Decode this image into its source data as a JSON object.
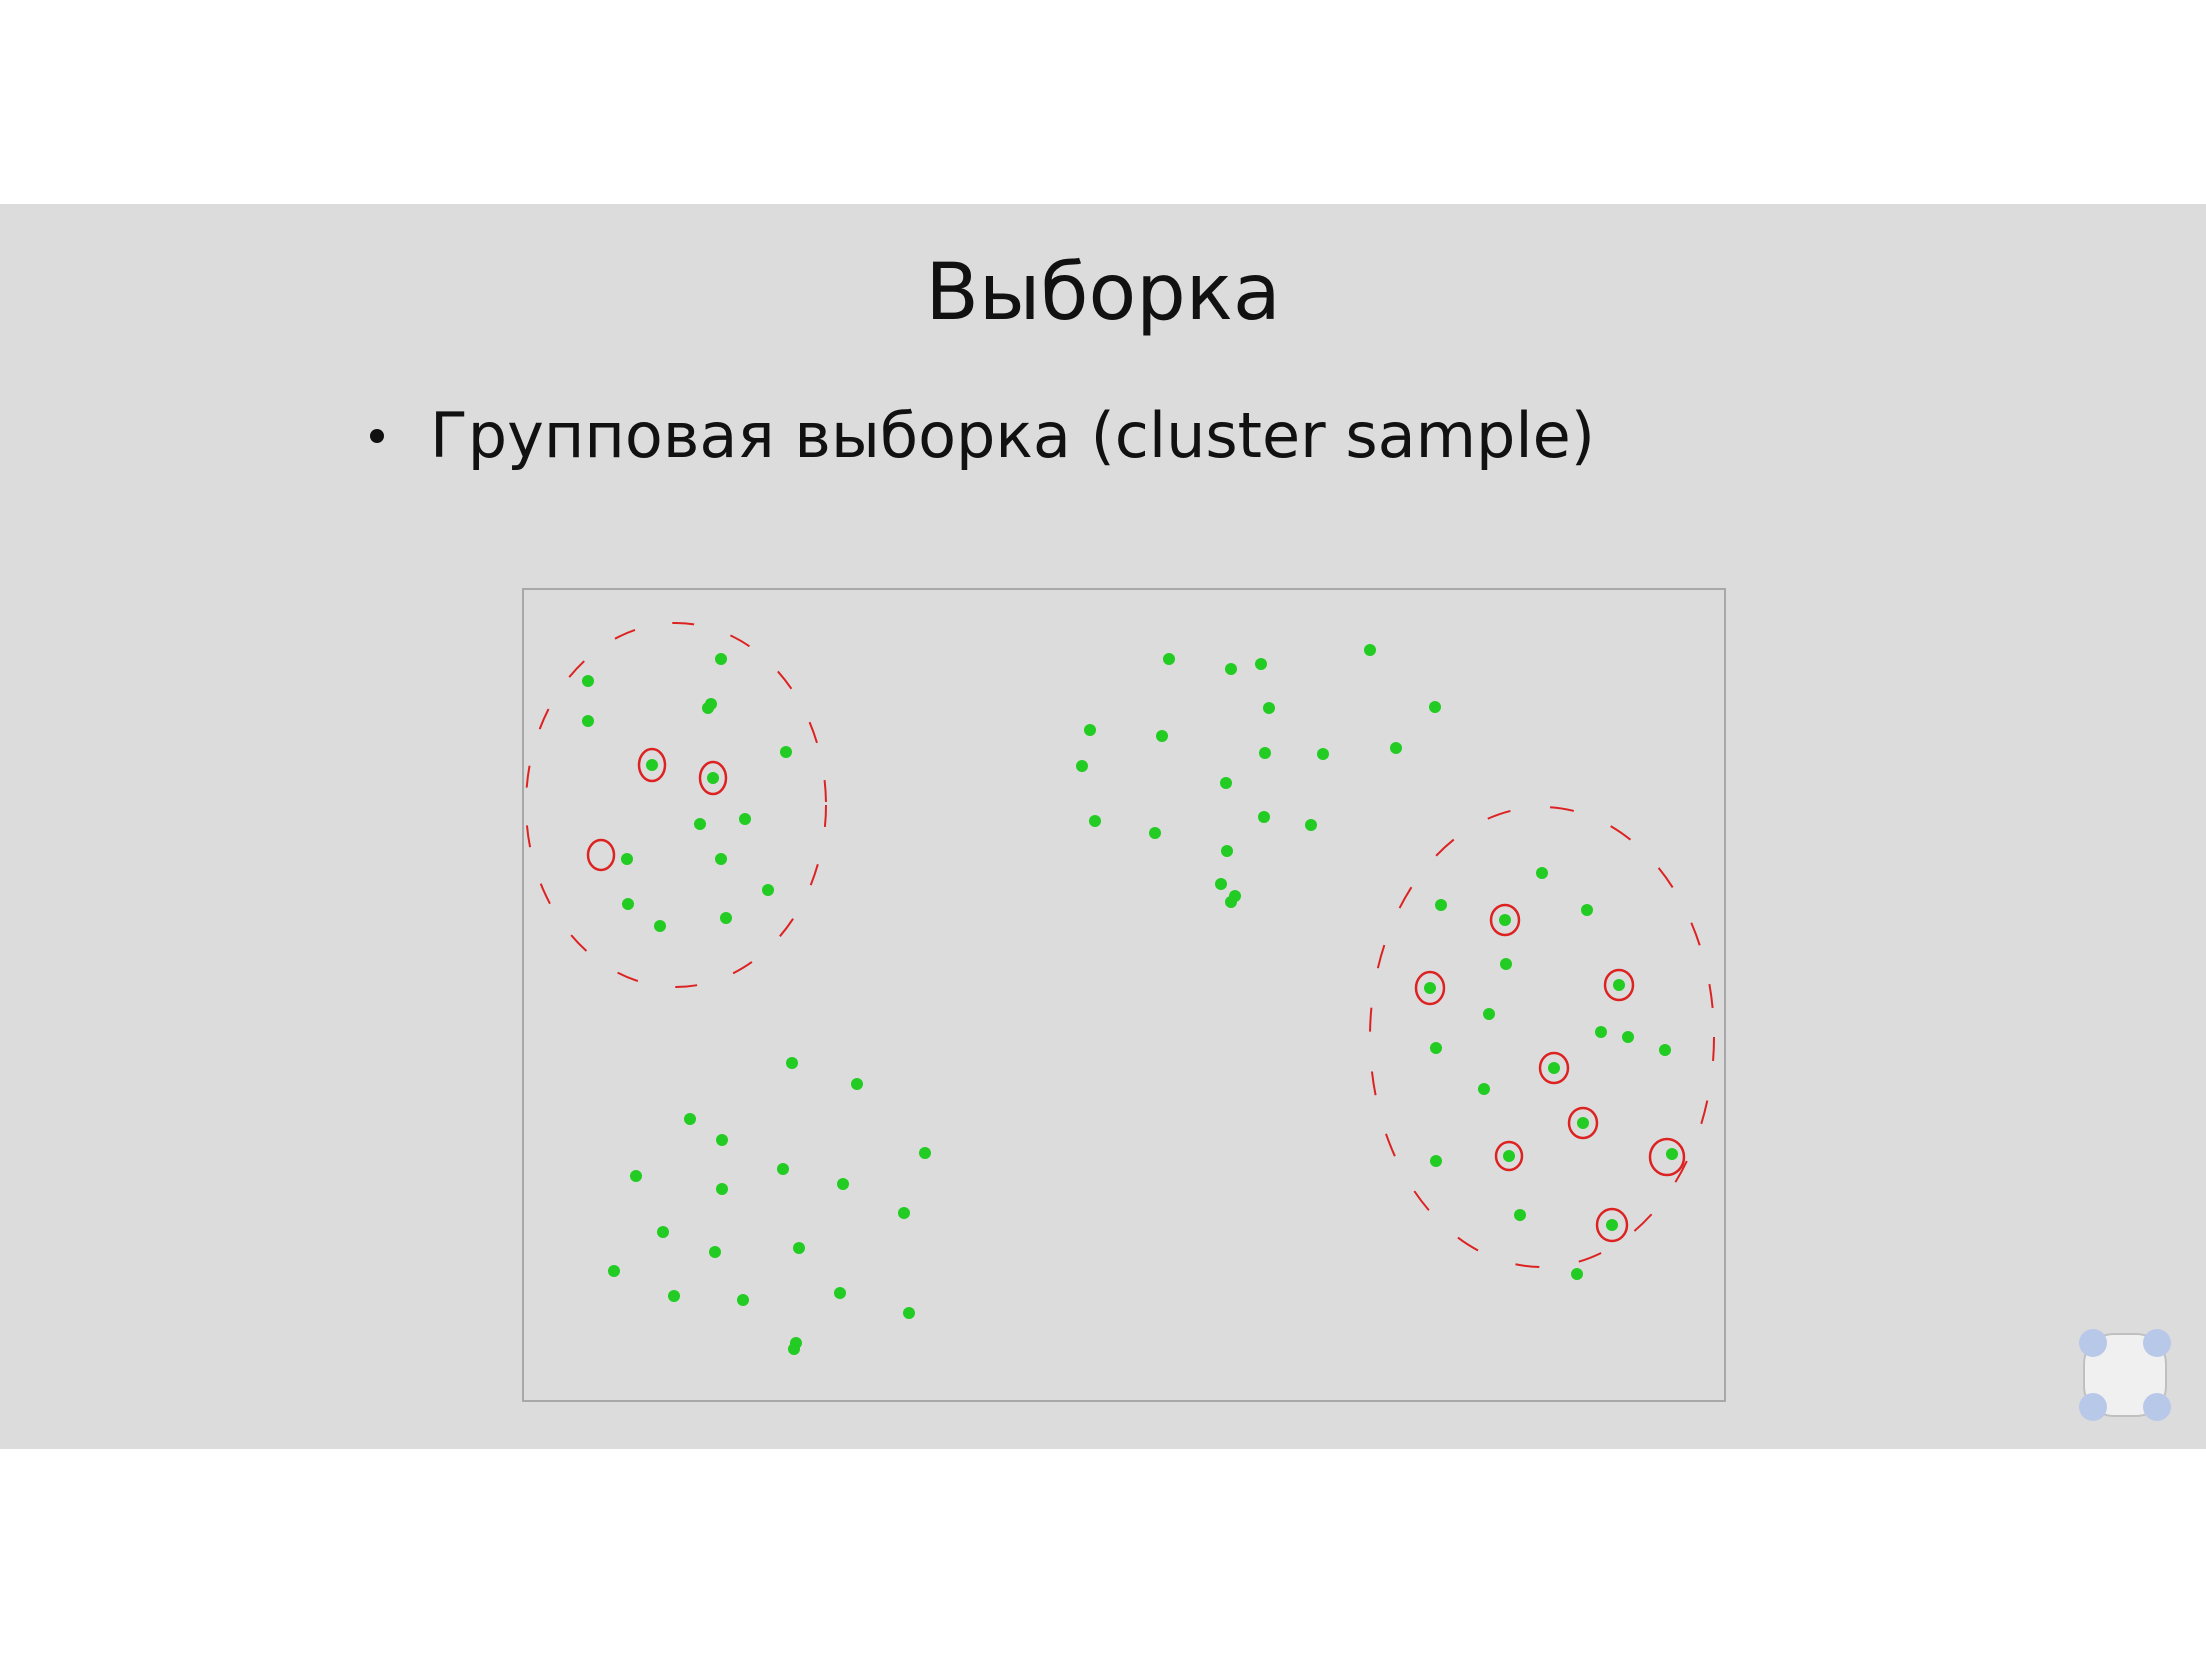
{
  "slide": {
    "title": "Выборка",
    "bullet": "Групповая выборка (cluster sample)"
  },
  "diagram": {
    "point_color": "#22cc22",
    "selection_color": "#dd2222",
    "border_color": "#a8a8a8"
  },
  "corner_widget": {
    "icon": "fullscreen-toggle-icon",
    "color": "#b8c8e8"
  }
}
